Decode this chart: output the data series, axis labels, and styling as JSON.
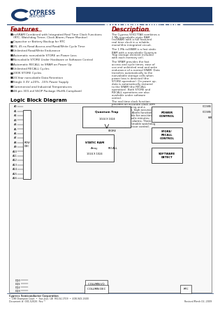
{
  "title_part": "STK17TA8",
  "title_main": "128k X 8 AutoStore™ nvSRAM\nwith Real Time Clock",
  "title_bg_color": "#1a3a6b",
  "title_text_color": "#ffffff",
  "logo_text": "CYPRESS\nPERFORM",
  "features_title": "Features",
  "features": [
    "nvSRAM Combined with Integrated Real Time Clock Functions\n(RTC, Watchdog Timer, Clock Alarm, Power Monitor)",
    "Capacitor or Battery Backup for RTC",
    "25, 45 ns Read Access and Read/Write Cycle Time",
    "Unlimited Read/Write Endurance",
    "Automatic nonvolatile STORE on Power Loss",
    "Nonvolatile STORE Under Hardware or Software Control",
    "Automatic RECALL to SRAM on Power Up",
    "Unlimited RECALL Cycles",
    "200K STORE Cycles",
    "20-Year nonvolatile Data Retention",
    "Single 3.3V ±20%, -15% Power Supply",
    "Commercial and Industrial Temperatures",
    "48-pin 300-mil SSOP Package (RoHS-Compliant)"
  ],
  "description_title": "Description",
  "description": [
    "The Cypress STK17TA8 combines a 1 Mb nonvolatile static RAM (nvSRAM) with a full featured real time clock in a reliable, monolithic integrated circuit.",
    "The 1 Mb nvSRAM is a fast static RAM with a nonvolatile Quantum Trap storage element included with each memory cell.",
    "The SRAM provides the fast access and cycle times, ease of use and unlimited read and write endurance of a normal SRAM. Data transfers automatically to the nonvolatile storage cells when power loss is detected (the STORE operation). On power up, data is automatically restored to the SRAM (the RECALL operation). Both STORE and RECALL operations are also available under software control.",
    "The real time clock function provides an accurate clock with leap year tracking and a programmable, high accuracy oscillator. The Alarm function is programmable for one-time alarms or periodic minutes, hours, or days alarms. There is also a programmable watchdog timer for processor control."
  ],
  "block_diagram_title": "Logic Block Diagram",
  "footer_company": "Cypress Semiconductor Corporation",
  "footer_addr": "•  198 Champion Court  •",
  "footer_city": "San Jose, CA  95134-1709",
  "footer_phone": "•  408-943-2600",
  "footer_doc": "Document #: 001-52026  Rev. *",
  "footer_revised": "Revised March 02, 2009",
  "bg_color": "#ffffff",
  "header_line_color": "#1a3a6b",
  "features_color": "#8b0000",
  "description_color": "#8b0000",
  "body_text_color": "#333333",
  "footer_line_color": "#1a3a6b"
}
